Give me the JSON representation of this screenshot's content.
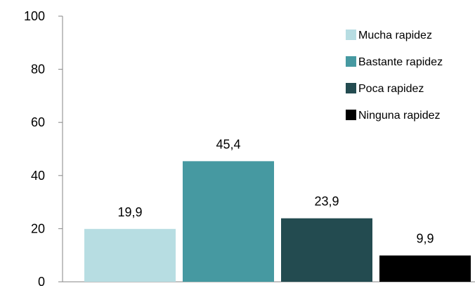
{
  "chart_data": {
    "type": "bar",
    "categories": [
      "Mucha rapidez",
      "Bastante rapidez",
      "Poca rapidez",
      "Ninguna rapidez"
    ],
    "values": [
      19.9,
      45.4,
      23.9,
      9.9
    ],
    "data_labels": [
      "19,9",
      "45,4",
      "23,9",
      "9,9"
    ],
    "colors": [
      "#B7DDE2",
      "#4699A1",
      "#234B50",
      "#000000"
    ],
    "ylim": [
      0,
      100
    ],
    "yticks": [
      0,
      20,
      40,
      60,
      80,
      100
    ],
    "ytick_labels": [
      "0",
      "20",
      "40",
      "60",
      "80",
      "100"
    ],
    "title": "",
    "xlabel": "",
    "ylabel": "",
    "grid": false,
    "legend": {
      "position": "top-right",
      "entries": [
        {
          "label": "Mucha rapidez",
          "color": "#B7DDE2"
        },
        {
          "label": "Bastante rapidez",
          "color": "#4699A1"
        },
        {
          "label": "Poca rapidez",
          "color": "#234B50"
        },
        {
          "label": "Ninguna rapidez",
          "color": "#000000"
        }
      ]
    }
  }
}
